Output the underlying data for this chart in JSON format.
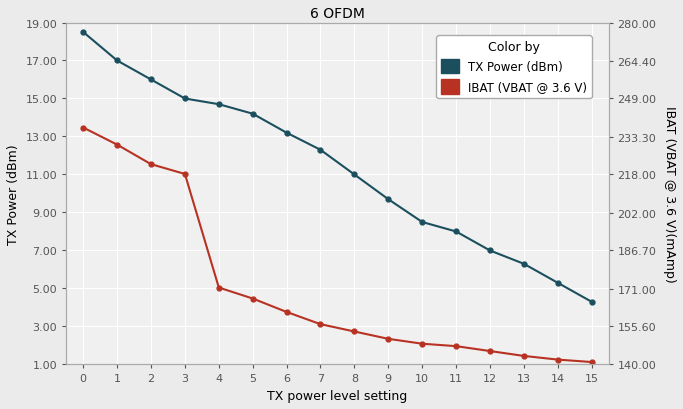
{
  "title": "6 OFDM",
  "xlabel": "TX power level setting",
  "ylabel_left": "TX Power (dBm)",
  "ylabel_right": "IBAT (VBAT @ 3.6 V)(mAmp)",
  "x": [
    0,
    1,
    2,
    3,
    4,
    5,
    6,
    7,
    8,
    9,
    10,
    11,
    12,
    13,
    14,
    15
  ],
  "tx_power": [
    18.5,
    17.0,
    16.0,
    15.0,
    14.7,
    14.2,
    13.2,
    12.3,
    11.0,
    9.7,
    8.5,
    8.0,
    7.0,
    6.3,
    5.3,
    4.3
  ],
  "ibat": [
    237.0,
    230.0,
    222.0,
    218.0,
    171.5,
    167.0,
    161.5,
    156.5,
    153.5,
    150.5,
    148.5,
    147.5,
    145.5,
    143.5,
    142.0,
    141.0
  ],
  "tx_color": "#1b4f5e",
  "ibat_color": "#b83223",
  "legend_title": "Color by",
  "legend_tx": "TX Power (dBm)",
  "legend_ibat": "IBAT (VBAT @ 3.6 V)",
  "ylim_left": [
    1.0,
    19.0
  ],
  "ylim_right": [
    140.0,
    280.0
  ],
  "yticks_left": [
    1.0,
    3.0,
    5.0,
    7.0,
    9.0,
    11.0,
    13.0,
    15.0,
    17.0,
    19.0
  ],
  "yticks_right": [
    140.0,
    155.6,
    171.0,
    186.7,
    202.0,
    218.0,
    233.3,
    249.0,
    264.4,
    280.0
  ],
  "ytick_labels_right": [
    "140.00",
    "155.60",
    "171.00",
    "186.70",
    "202.00",
    "218.00",
    "233.30",
    "249.00",
    "264.40",
    "280.00"
  ],
  "ytick_labels_left": [
    "1.00",
    "3.00",
    "5.00",
    "7.00",
    "9.00",
    "11.00",
    "13.00",
    "15.00",
    "17.00",
    "19.00"
  ],
  "bg_color": "#ebebeb",
  "plot_bg_color": "#f0f0f0",
  "grid_color": "#ffffff",
  "marker_style": "o",
  "marker_size": 3.5,
  "line_width": 1.5
}
